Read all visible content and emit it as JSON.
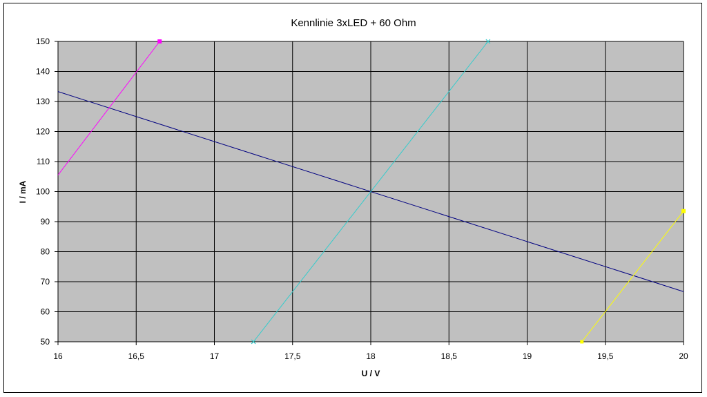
{
  "chart_data": {
    "type": "line",
    "title": "Kennlinie 3xLED + 60 Ohm",
    "xlabel": "U / V",
    "ylabel": "I / mA",
    "xlim": [
      16,
      20
    ],
    "ylim": [
      50,
      150
    ],
    "xticks": [
      "16",
      "16,5",
      "17",
      "17,5",
      "18",
      "18,5",
      "19",
      "19,5",
      "20"
    ],
    "yticks": [
      "50",
      "60",
      "70",
      "80",
      "90",
      "100",
      "110",
      "120",
      "130",
      "140",
      "150"
    ],
    "plot_background": "#C0C0C0",
    "grid": true,
    "legend": "none",
    "series": [
      {
        "color": "#000080",
        "marker": "none",
        "x": [
          16,
          20
        ],
        "y": [
          133.3,
          66.7
        ]
      },
      {
        "color": "#FF00FF",
        "marker": "square",
        "x": [
          16,
          16.65
        ],
        "y": [
          105.5,
          150
        ]
      },
      {
        "color": "#33CCCC",
        "marker": "x",
        "x": [
          17.25,
          18.75
        ],
        "y": [
          50,
          150
        ]
      },
      {
        "color": "#FFFF00",
        "marker": "square",
        "x": [
          19.35,
          20
        ],
        "y": [
          50,
          93.5
        ]
      }
    ]
  }
}
